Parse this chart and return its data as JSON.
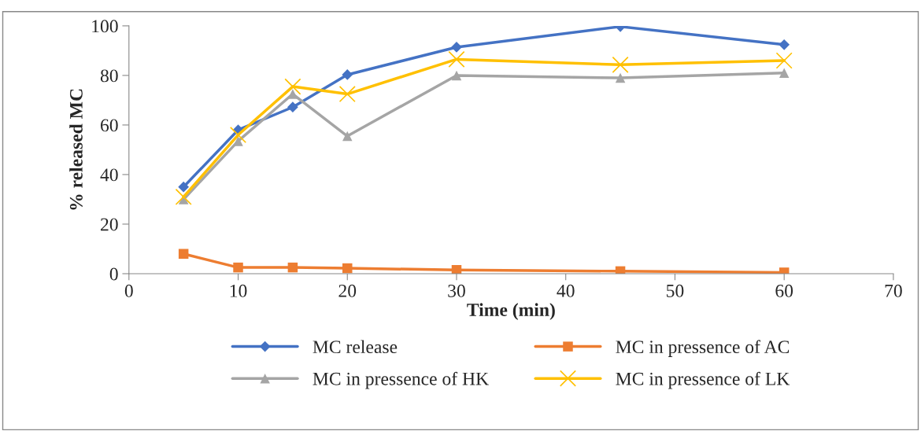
{
  "chart_data": {
    "type": "line",
    "xlabel": "Time (min)",
    "ylabel": "% released MC",
    "x": [
      5,
      10,
      15,
      20,
      30,
      45,
      60
    ],
    "xlim": [
      0,
      70
    ],
    "xticks": [
      0,
      10,
      20,
      30,
      40,
      50,
      60,
      70
    ],
    "ylim": [
      0,
      100
    ],
    "yticks": [
      0,
      20,
      40,
      60,
      80,
      100
    ],
    "grid": false,
    "legend": "bottom",
    "line_style": "solid",
    "series": [
      {
        "name": "MC release",
        "color": "#4472c4",
        "marker": "diamond",
        "values": [
          35,
          58,
          67.2,
          80.3,
          91.4,
          99.7,
          92.4
        ]
      },
      {
        "name": "MC in pressence of AC",
        "color": "#ed7d31",
        "marker": "square",
        "values": [
          8,
          2.5,
          2.5,
          2.2,
          1.5,
          1,
          0.5
        ]
      },
      {
        "name": "MC in pressence of HK",
        "color": "#a5a5a5",
        "marker": "triangle",
        "values": [
          30,
          53.5,
          72.5,
          55.5,
          80,
          79,
          81
        ]
      },
      {
        "name": "MC in pressence of LK",
        "color": "#ffc000",
        "marker": "cross",
        "values": [
          31,
          56,
          75.5,
          72.5,
          86.5,
          84.3,
          86
        ]
      }
    ]
  }
}
